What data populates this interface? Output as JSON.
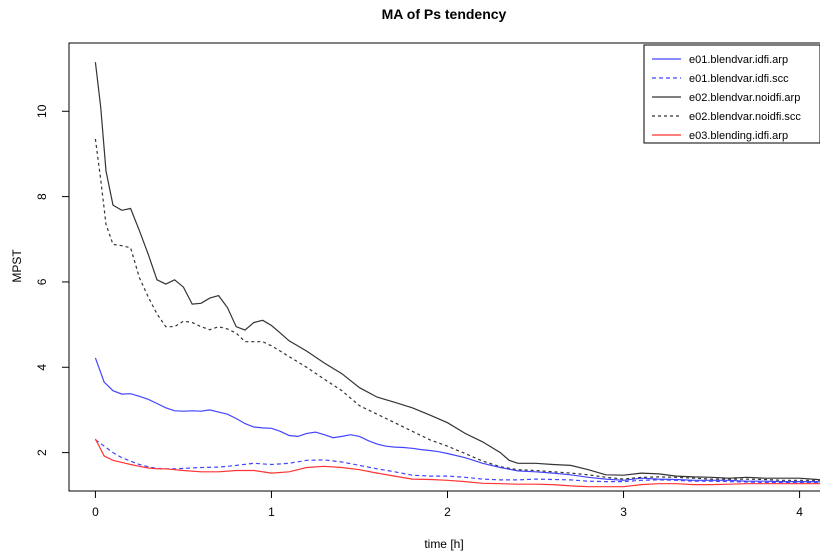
{
  "chart_data": {
    "type": "line",
    "title": "MA of Ps tendency",
    "xlabel": "time [h]",
    "ylabel": "MPST",
    "xlim": [
      -0.15,
      4.15
    ],
    "ylim": [
      1.1,
      11.6
    ],
    "xticks": [
      0,
      1,
      2,
      3,
      4
    ],
    "yticks": [
      2,
      4,
      6,
      8,
      10
    ],
    "grid": false,
    "legend_position": "top-right",
    "series": [
      {
        "name": "e01.blendvar.idfi.arp",
        "color": "#4444ff",
        "dash": "solid",
        "x": [
          0,
          0.05,
          0.1,
          0.15,
          0.2,
          0.25,
          0.3,
          0.35,
          0.4,
          0.45,
          0.5,
          0.55,
          0.6,
          0.65,
          0.7,
          0.75,
          0.8,
          0.85,
          0.9,
          0.95,
          1.0,
          1.05,
          1.1,
          1.15,
          1.2,
          1.25,
          1.3,
          1.35,
          1.4,
          1.45,
          1.5,
          1.55,
          1.6,
          1.65,
          1.7,
          1.75,
          1.8,
          1.85,
          1.9,
          1.95,
          2.0,
          2.1,
          2.2,
          2.3,
          2.4,
          2.5,
          2.6,
          2.7,
          2.8,
          2.9,
          3.0,
          3.1,
          3.2,
          3.3,
          3.4,
          3.5,
          3.6,
          3.7,
          3.8,
          3.9,
          4.0,
          4.1,
          4.15
        ],
        "y": [
          4.22,
          3.65,
          3.45,
          3.37,
          3.38,
          3.32,
          3.25,
          3.15,
          3.05,
          2.98,
          2.97,
          2.98,
          2.97,
          3.0,
          2.95,
          2.9,
          2.8,
          2.68,
          2.6,
          2.58,
          2.57,
          2.5,
          2.4,
          2.38,
          2.45,
          2.48,
          2.42,
          2.35,
          2.38,
          2.42,
          2.38,
          2.28,
          2.2,
          2.15,
          2.13,
          2.12,
          2.1,
          2.07,
          2.05,
          2.02,
          1.98,
          1.88,
          1.75,
          1.65,
          1.57,
          1.55,
          1.52,
          1.48,
          1.42,
          1.38,
          1.35,
          1.4,
          1.38,
          1.37,
          1.35,
          1.35,
          1.35,
          1.33,
          1.33,
          1.32,
          1.32,
          1.32,
          1.3
        ]
      },
      {
        "name": "e01.blendvar.idfi.scc",
        "color": "#4444ff",
        "dash": "dashed",
        "x": [
          0,
          0.05,
          0.1,
          0.15,
          0.2,
          0.25,
          0.3,
          0.35,
          0.4,
          0.45,
          0.5,
          0.6,
          0.7,
          0.8,
          0.9,
          1.0,
          1.1,
          1.2,
          1.3,
          1.4,
          1.5,
          1.6,
          1.7,
          1.8,
          1.9,
          2.0,
          2.1,
          2.2,
          2.3,
          2.4,
          2.5,
          2.6,
          2.7,
          2.8,
          2.9,
          3.0,
          3.1,
          3.2,
          3.3,
          3.4,
          3.5,
          3.6,
          3.7,
          3.8,
          3.9,
          4.0,
          4.1,
          4.15
        ],
        "y": [
          2.3,
          2.15,
          2.0,
          1.88,
          1.8,
          1.72,
          1.67,
          1.63,
          1.62,
          1.62,
          1.63,
          1.65,
          1.66,
          1.7,
          1.75,
          1.72,
          1.75,
          1.82,
          1.83,
          1.78,
          1.7,
          1.62,
          1.55,
          1.47,
          1.45,
          1.45,
          1.42,
          1.38,
          1.36,
          1.36,
          1.38,
          1.37,
          1.36,
          1.33,
          1.32,
          1.32,
          1.35,
          1.36,
          1.35,
          1.33,
          1.33,
          1.32,
          1.31,
          1.3,
          1.3,
          1.3,
          1.3,
          1.3
        ]
      },
      {
        "name": "e02.blendvar.noidfi.arp",
        "color": "#333333",
        "dash": "solid",
        "x": [
          0,
          0.03,
          0.06,
          0.1,
          0.15,
          0.2,
          0.25,
          0.3,
          0.35,
          0.4,
          0.45,
          0.5,
          0.55,
          0.6,
          0.65,
          0.7,
          0.75,
          0.8,
          0.85,
          0.9,
          0.95,
          1.0,
          1.05,
          1.1,
          1.2,
          1.3,
          1.4,
          1.5,
          1.6,
          1.7,
          1.8,
          1.9,
          2.0,
          2.1,
          2.2,
          2.3,
          2.35,
          2.4,
          2.5,
          2.6,
          2.7,
          2.8,
          2.9,
          3.0,
          3.1,
          3.2,
          3.3,
          3.4,
          3.5,
          3.6,
          3.7,
          3.8,
          3.9,
          4.0,
          4.1,
          4.15
        ],
        "y": [
          11.15,
          10.1,
          8.6,
          7.8,
          7.68,
          7.72,
          7.2,
          6.65,
          6.05,
          5.95,
          6.05,
          5.88,
          5.48,
          5.5,
          5.62,
          5.68,
          5.4,
          4.95,
          4.87,
          5.05,
          5.1,
          4.98,
          4.8,
          4.62,
          4.38,
          4.1,
          3.85,
          3.52,
          3.3,
          3.18,
          3.05,
          2.88,
          2.7,
          2.45,
          2.25,
          2.0,
          1.82,
          1.75,
          1.75,
          1.72,
          1.7,
          1.6,
          1.48,
          1.47,
          1.52,
          1.5,
          1.45,
          1.43,
          1.42,
          1.4,
          1.42,
          1.4,
          1.4,
          1.4,
          1.37,
          1.35
        ]
      },
      {
        "name": "e02.blendvar.noidfi.scc",
        "color": "#333333",
        "dash": "dotted",
        "x": [
          0,
          0.03,
          0.06,
          0.1,
          0.15,
          0.2,
          0.25,
          0.3,
          0.35,
          0.4,
          0.45,
          0.5,
          0.55,
          0.6,
          0.65,
          0.7,
          0.75,
          0.8,
          0.85,
          0.9,
          0.95,
          1.0,
          1.05,
          1.1,
          1.2,
          1.3,
          1.4,
          1.5,
          1.6,
          1.7,
          1.8,
          1.9,
          2.0,
          2.1,
          2.2,
          2.3,
          2.4,
          2.5,
          2.6,
          2.7,
          2.8,
          2.9,
          3.0,
          3.1,
          3.2,
          3.3,
          3.4,
          3.5,
          3.6,
          3.7,
          3.8,
          3.9,
          4.0,
          4.1,
          4.15
        ],
        "y": [
          9.35,
          8.4,
          7.35,
          6.88,
          6.85,
          6.8,
          6.1,
          5.65,
          5.25,
          4.95,
          4.95,
          5.08,
          5.05,
          4.95,
          4.88,
          4.95,
          4.9,
          4.8,
          4.6,
          4.6,
          4.6,
          4.5,
          4.38,
          4.25,
          4.0,
          3.72,
          3.45,
          3.1,
          2.9,
          2.7,
          2.5,
          2.3,
          2.15,
          1.98,
          1.8,
          1.67,
          1.6,
          1.58,
          1.55,
          1.52,
          1.48,
          1.42,
          1.38,
          1.42,
          1.43,
          1.42,
          1.4,
          1.38,
          1.38,
          1.38,
          1.37,
          1.35,
          1.35,
          1.35,
          1.35
        ]
      },
      {
        "name": "e03.blending.idfi.arp",
        "color": "#ff3333",
        "dash": "solid",
        "x": [
          0,
          0.05,
          0.1,
          0.15,
          0.2,
          0.25,
          0.3,
          0.35,
          0.4,
          0.45,
          0.5,
          0.6,
          0.7,
          0.8,
          0.9,
          1.0,
          1.1,
          1.2,
          1.3,
          1.4,
          1.5,
          1.6,
          1.7,
          1.8,
          1.9,
          2.0,
          2.1,
          2.2,
          2.3,
          2.4,
          2.5,
          2.6,
          2.7,
          2.8,
          2.9,
          3.0,
          3.1,
          3.2,
          3.3,
          3.4,
          3.5,
          3.6,
          3.7,
          3.8,
          3.9,
          4.0,
          4.1,
          4.15
        ],
        "y": [
          2.32,
          1.92,
          1.82,
          1.77,
          1.72,
          1.68,
          1.64,
          1.62,
          1.62,
          1.6,
          1.58,
          1.55,
          1.55,
          1.58,
          1.58,
          1.52,
          1.55,
          1.65,
          1.68,
          1.65,
          1.6,
          1.52,
          1.45,
          1.38,
          1.37,
          1.35,
          1.32,
          1.28,
          1.27,
          1.26,
          1.26,
          1.25,
          1.22,
          1.2,
          1.2,
          1.2,
          1.25,
          1.27,
          1.27,
          1.25,
          1.25,
          1.26,
          1.27,
          1.27,
          1.27,
          1.27,
          1.27,
          1.27
        ]
      }
    ]
  }
}
